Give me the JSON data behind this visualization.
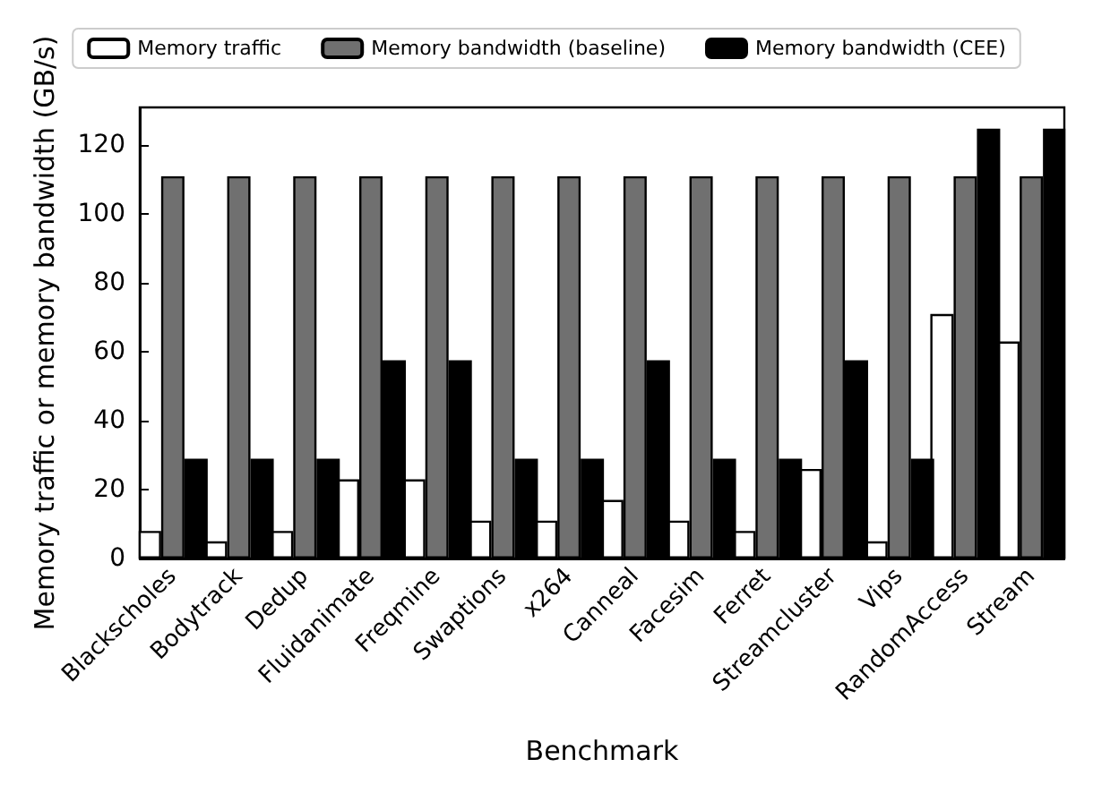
{
  "chart_data": {
    "type": "bar",
    "xlabel": "Benchmark",
    "ylabel": "Memory traffic or memory bandwidth (GB/s)",
    "categories": [
      "Blackscholes",
      "Bodytrack",
      "Dedup",
      "Fluidanimate",
      "Freqmine",
      "Swaptions",
      "x264",
      "Canneal",
      "Facesim",
      "Ferret",
      "Streamcluster",
      "Vips",
      "RandomAccess",
      "Stream"
    ],
    "series": [
      {
        "name": "Memory traffic",
        "color": "#ffffff",
        "values": [
          8,
          5,
          8,
          23,
          23,
          11,
          11,
          17,
          11,
          8,
          26,
          5,
          71,
          63
        ]
      },
      {
        "name": "Memory bandwidth (baseline)",
        "color": "#707070",
        "values": [
          111,
          111,
          111,
          111,
          111,
          111,
          111,
          111,
          111,
          111,
          111,
          111,
          111,
          111
        ]
      },
      {
        "name": "Memory bandwidth (CEE)",
        "color": "#000000",
        "values": [
          29,
          29,
          29,
          57.6,
          57.6,
          29,
          29,
          57.6,
          29,
          29,
          57.6,
          29,
          124.8,
          124.8
        ]
      }
    ],
    "ylim": [
      0,
      131
    ],
    "yticks": [
      0,
      20,
      40,
      60,
      80,
      100,
      120
    ],
    "legend": "top",
    "grid": false
  }
}
